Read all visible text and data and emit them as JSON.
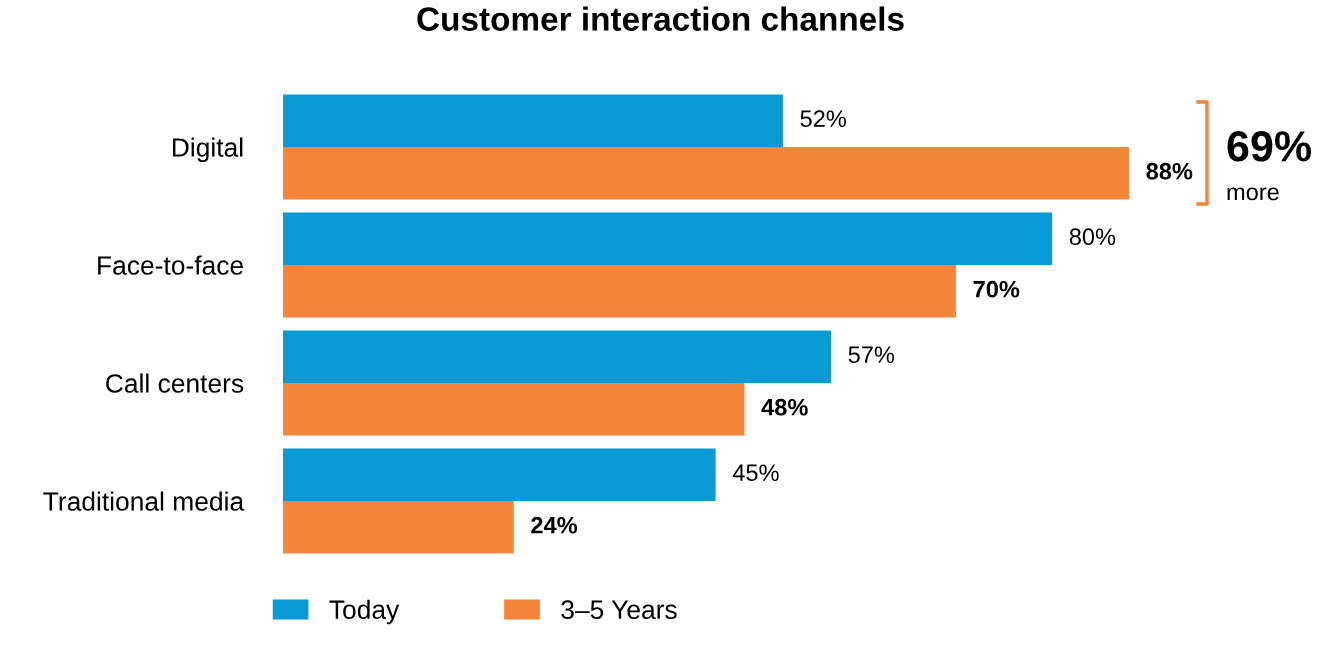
{
  "chart_data": {
    "type": "bar",
    "orientation": "horizontal",
    "title": "Customer interaction channels",
    "categories": [
      "Digital",
      "Face-to-face",
      "Call centers",
      "Traditional media"
    ],
    "series": [
      {
        "name": "Today",
        "color": "#0a9ad6",
        "values": [
          52,
          80,
          57,
          45
        ],
        "value_labels": [
          "52%",
          "80%",
          "57%",
          "45%"
        ]
      },
      {
        "name": "3–5 Years",
        "color": "#f4853a",
        "values": [
          88,
          70,
          48,
          24
        ],
        "value_labels": [
          "88%",
          "70%",
          "48%",
          "24%"
        ]
      }
    ],
    "tick_labels": "y",
    "grid": false,
    "legend": "bottom",
    "annotations": [
      "69%",
      "more"
    ]
  }
}
